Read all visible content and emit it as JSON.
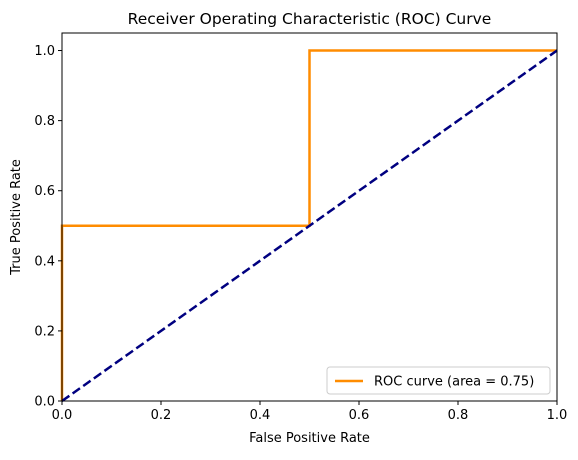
{
  "chart_data": {
    "type": "line",
    "title": "Receiver Operating Characteristic (ROC) Curve",
    "xlabel": "False Positive Rate",
    "ylabel": "True Positive Rate",
    "xlim": [
      0.0,
      1.0
    ],
    "ylim": [
      0.0,
      1.05
    ],
    "xticks": [
      "0.0",
      "0.2",
      "0.4",
      "0.6",
      "0.8",
      "1.0"
    ],
    "yticks": [
      "0.0",
      "0.2",
      "0.4",
      "0.6",
      "0.8",
      "1.0"
    ],
    "grid": false,
    "legend_position": "bottom-right",
    "series": [
      {
        "name": "ROC curve (area = 0.75)",
        "color": "#ff8c00",
        "style": "solid",
        "x": [
          0.0,
          0.0,
          0.5,
          0.5,
          1.0
        ],
        "y": [
          0.0,
          0.5,
          0.5,
          1.0,
          1.0
        ]
      },
      {
        "color": "#000080",
        "style": "dashed",
        "x": [
          0.0,
          1.0
        ],
        "y": [
          0.0,
          1.0
        ]
      }
    ]
  }
}
